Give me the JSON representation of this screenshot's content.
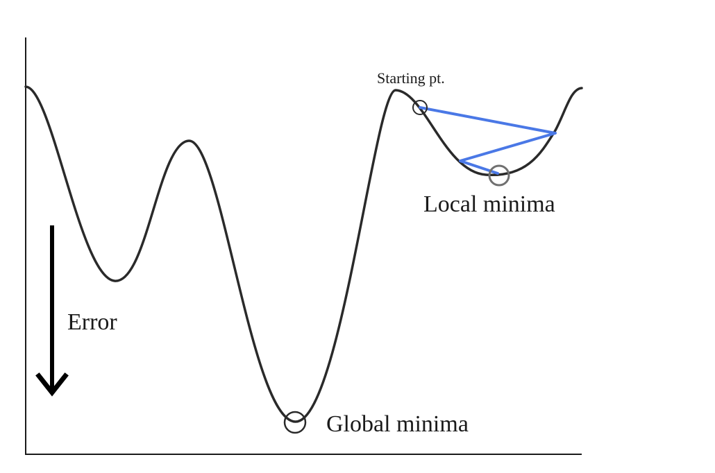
{
  "labels": {
    "starting_point": "Starting pt.",
    "local_minima": "Local minima",
    "global_minima": "Global minima",
    "error": "Error"
  },
  "colors": {
    "curve": "#2a2a2a",
    "path": "#4a78e6",
    "marker_start": "#2a2a2a",
    "marker_local": "#707070",
    "marker_global": "#2a2a2a",
    "axis": "#1a1a1a",
    "arrow": "#000000"
  }
}
